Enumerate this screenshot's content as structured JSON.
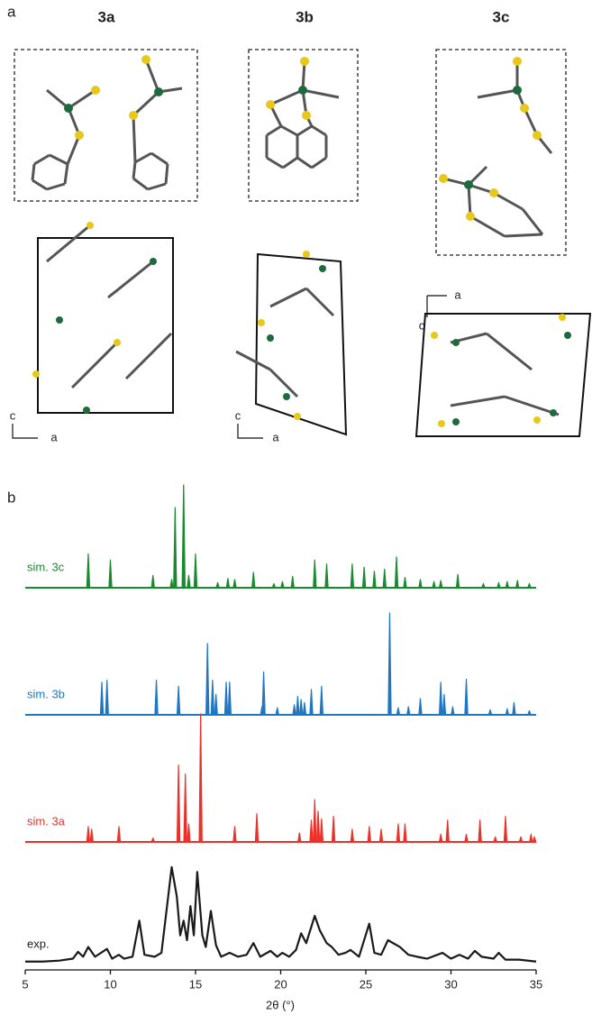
{
  "panel_a": {
    "label": "a",
    "structures": [
      {
        "name": "3a",
        "axis_vertical": "c",
        "axis_horizontal": "a"
      },
      {
        "name": "3b",
        "axis_vertical": "c",
        "axis_horizontal": "a"
      },
      {
        "name": "3c",
        "axis_vertical": "c",
        "axis_horizontal": "a"
      }
    ]
  },
  "panel_b": {
    "label": "b"
  },
  "chart_data": {
    "type": "line",
    "xlabel": "2θ (°)",
    "xlim": [
      5,
      35
    ],
    "xticks": [
      5,
      10,
      15,
      20,
      25,
      30,
      35
    ],
    "series": [
      {
        "name": "sim. 3c",
        "color": "#1a8a2e",
        "type": "stem",
        "x": [
          8.7,
          10.0,
          12.5,
          13.6,
          13.8,
          14.3,
          14.6,
          15.0,
          16.3,
          16.9,
          17.3,
          18.4,
          19.6,
          20.1,
          20.7,
          22.0,
          22.7,
          24.2,
          24.9,
          25.5,
          26.1,
          26.8,
          27.3,
          28.2,
          29.0,
          29.4,
          30.4,
          31.9,
          32.8,
          33.3,
          33.9,
          34.6
        ],
        "values": [
          33,
          27,
          12,
          8,
          78,
          100,
          12,
          33,
          5,
          9,
          8,
          15,
          4,
          6,
          11,
          27,
          23,
          23,
          20,
          16,
          18,
          30,
          10,
          8,
          6,
          7,
          13,
          4,
          5,
          6,
          7,
          4
        ]
      },
      {
        "name": "sim. 3b",
        "color": "#1f77c4",
        "type": "stem",
        "x": [
          9.5,
          9.8,
          12.7,
          14.0,
          15.7,
          16.0,
          16.2,
          16.8,
          17.0,
          18.9,
          19.0,
          19.8,
          20.8,
          21.0,
          21.2,
          21.4,
          21.8,
          22.4,
          26.4,
          26.9,
          27.5,
          28.2,
          29.4,
          29.6,
          30.1,
          30.9,
          32.3,
          33.3,
          33.7,
          34.6
        ],
        "values": [
          32,
          34,
          34,
          28,
          70,
          34,
          20,
          32,
          32,
          8,
          42,
          7,
          10,
          18,
          15,
          12,
          25,
          28,
          100,
          7,
          8,
          16,
          32,
          20,
          8,
          35,
          5,
          6,
          12,
          4
        ]
      },
      {
        "name": "sim. 3a",
        "color": "#e8322a",
        "type": "stem",
        "x": [
          8.7,
          8.9,
          10.5,
          12.5,
          14.0,
          14.4,
          14.6,
          15.3,
          17.3,
          18.6,
          21.1,
          21.8,
          22.0,
          22.2,
          22.4,
          23.1,
          24.2,
          25.2,
          25.9,
          26.9,
          27.3,
          29.4,
          29.8,
          30.9,
          31.7,
          32.6,
          33.2,
          34.1,
          34.7,
          34.9
        ],
        "values": [
          12,
          10,
          12,
          3,
          60,
          53,
          14,
          100,
          12,
          22,
          7,
          17,
          33,
          24,
          18,
          20,
          10,
          12,
          10,
          14,
          14,
          6,
          17,
          6,
          17,
          4,
          20,
          4,
          6,
          4
        ]
      },
      {
        "name": "exp.",
        "color": "#1a1a1a",
        "type": "line",
        "x": [
          5,
          6,
          7,
          7.8,
          8.1,
          8.4,
          8.7,
          9.1,
          9.8,
          10.1,
          10.5,
          10.8,
          11.3,
          11.7,
          12.0,
          12.6,
          13.0,
          13.6,
          13.9,
          14.1,
          14.3,
          14.5,
          14.7,
          14.9,
          15.1,
          15.4,
          15.6,
          15.9,
          16.2,
          16.5,
          17.0,
          17.5,
          18.0,
          18.4,
          18.8,
          19.4,
          19.8,
          20.1,
          20.5,
          20.9,
          21.2,
          21.5,
          22.0,
          22.3,
          22.7,
          23.0,
          23.4,
          23.8,
          24.1,
          24.6,
          25.2,
          25.5,
          25.9,
          26.3,
          26.6,
          27.0,
          27.5,
          28.0,
          28.6,
          29.5,
          30.0,
          30.5,
          31.0,
          31.4,
          31.8,
          32.5,
          32.8,
          33.2,
          34.0,
          35
        ],
        "values": [
          3,
          3,
          4,
          6,
          13,
          8,
          18,
          8,
          16,
          6,
          10,
          6,
          8,
          45,
          10,
          8,
          12,
          100,
          70,
          30,
          45,
          25,
          60,
          30,
          95,
          30,
          18,
          55,
          20,
          8,
          12,
          8,
          10,
          22,
          8,
          14,
          8,
          12,
          8,
          15,
          32,
          22,
          50,
          35,
          22,
          18,
          10,
          12,
          15,
          8,
          42,
          12,
          10,
          25,
          22,
          18,
          10,
          8,
          6,
          12,
          6,
          10,
          6,
          14,
          8,
          6,
          12,
          5,
          5,
          3
        ]
      }
    ]
  }
}
